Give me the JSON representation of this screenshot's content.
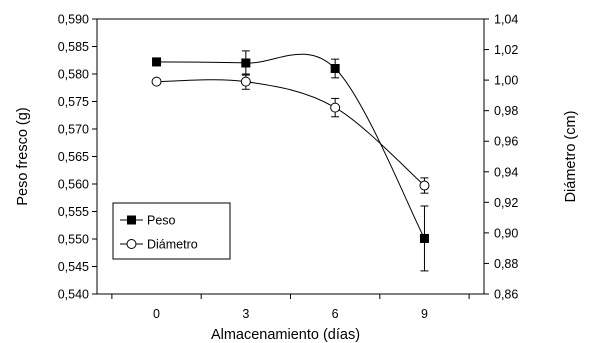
{
  "chart_data": {
    "type": "line",
    "title": "",
    "xlabel": "Almacenamiento (días)",
    "ylabel": "Peso fresco (g)",
    "y2label": "Diámetro (cm)",
    "x": [
      0,
      3,
      6,
      9
    ],
    "xlim": [
      -2,
      11
    ],
    "xticks": [
      "0",
      "3",
      "6",
      "9"
    ],
    "ylim": [
      0.54,
      0.59
    ],
    "yticks": [
      "0,540",
      "0,545",
      "0,550",
      "0,555",
      "0,560",
      "0,565",
      "0,570",
      "0,575",
      "0,580",
      "0,585",
      "0,590"
    ],
    "y2lim": [
      0.86,
      1.04
    ],
    "y2ticks": [
      "0,86",
      "0,88",
      "0,90",
      "0,92",
      "0,94",
      "0,96",
      "0,98",
      "1,00",
      "1,02",
      "1,04"
    ],
    "grid": false,
    "legend_position": "lower-left",
    "series": [
      {
        "name": "Peso",
        "axis": "left",
        "marker": "filled-square",
        "color": "#000000",
        "values": [
          0.5822,
          0.582,
          0.581,
          0.5501
        ],
        "errors": [
          0.0007,
          0.0022,
          0.0017,
          0.0059
        ]
      },
      {
        "name": "Diámetro",
        "axis": "right",
        "marker": "open-circle",
        "color": "#000000",
        "values": [
          0.999,
          0.999,
          0.982,
          0.931
        ],
        "errors": [
          0.0,
          0.005,
          0.006,
          0.005
        ]
      }
    ]
  }
}
